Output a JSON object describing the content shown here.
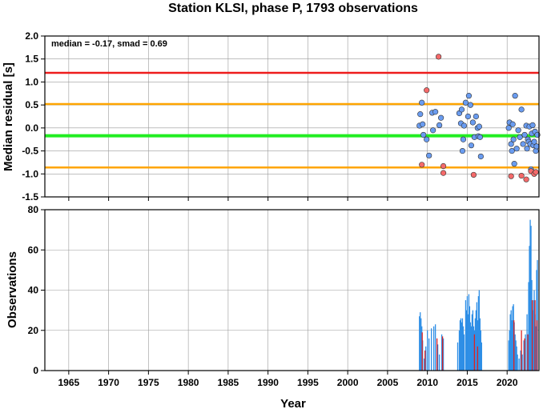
{
  "title": "Station KLSI, phase P, 1793 observations",
  "colors": {
    "red_line": "#ee1c1c",
    "orange_line": "#ffa500",
    "green_line": "#22ee22",
    "blue_point": "#6a9cf0",
    "red_point": "#f46a6a",
    "blue_bar": "#2f8fe6",
    "red_bar": "#dd2222",
    "grid": "#9a9a9a"
  },
  "chart_data": [
    {
      "type": "scatter",
      "ylabel": "Median residual [s]",
      "xlim": [
        1962,
        2024
      ],
      "ylim": [
        -1.5,
        2.0
      ],
      "xticks": [
        1965,
        1970,
        1975,
        1980,
        1985,
        1990,
        1995,
        2000,
        2005,
        2010,
        2015,
        2020
      ],
      "yticks": [
        -1.5,
        -1.0,
        -0.5,
        0.0,
        0.5,
        1.0,
        1.5,
        2.0
      ],
      "ytick_labels": [
        "-1.5",
        "-1.0",
        "-0.5",
        "0.0",
        "0.5",
        "1.0",
        "1.5",
        "2.0"
      ],
      "grid": true,
      "annotation": "median = -0.17, smad = 0.69",
      "hlines": [
        {
          "y": 1.2,
          "color": "red"
        },
        {
          "y": 0.52,
          "color": "orange"
        },
        {
          "y": -0.17,
          "color": "green"
        },
        {
          "y": -0.86,
          "color": "orange"
        }
      ],
      "series": [
        {
          "color": "blue",
          "points": [
            [
              2009.0,
              0.05
            ],
            [
              2009.1,
              0.3
            ],
            [
              2009.3,
              0.55
            ],
            [
              2009.4,
              0.08
            ],
            [
              2009.5,
              -0.15
            ],
            [
              2009.9,
              -0.25
            ],
            [
              2010.2,
              -0.6
            ],
            [
              2010.6,
              0.33
            ],
            [
              2010.7,
              -0.05
            ],
            [
              2011.0,
              0.35
            ],
            [
              2011.5,
              0.06
            ],
            [
              2011.7,
              0.22
            ],
            [
              2014.0,
              0.32
            ],
            [
              2014.2,
              0.1
            ],
            [
              2014.3,
              0.4
            ],
            [
              2014.5,
              -0.25
            ],
            [
              2014.6,
              0.05
            ],
            [
              2014.8,
              0.55
            ],
            [
              2014.4,
              -0.5
            ],
            [
              2015.1,
              0.25
            ],
            [
              2015.2,
              0.7
            ],
            [
              2015.4,
              0.5
            ],
            [
              2015.5,
              -0.38
            ],
            [
              2015.7,
              0.12
            ],
            [
              2015.9,
              -0.2
            ],
            [
              2016.1,
              0.25
            ],
            [
              2016.3,
              0.0
            ],
            [
              2016.4,
              -0.18
            ],
            [
              2016.6,
              -0.2
            ],
            [
              2016.7,
              -0.62
            ],
            [
              2016.5,
              0.03
            ],
            [
              2020.2,
              0.0
            ],
            [
              2020.3,
              0.12
            ],
            [
              2020.5,
              -0.35
            ],
            [
              2020.6,
              -0.5
            ],
            [
              2020.7,
              0.08
            ],
            [
              2020.8,
              -0.25
            ],
            [
              2020.9,
              -0.78
            ],
            [
              2021.0,
              0.7
            ],
            [
              2021.2,
              -0.45
            ],
            [
              2021.4,
              -0.05
            ],
            [
              2021.6,
              -0.2
            ],
            [
              2021.8,
              0.4
            ],
            [
              2022.0,
              -0.35
            ],
            [
              2022.2,
              -0.15
            ],
            [
              2022.4,
              0.05
            ],
            [
              2022.5,
              -0.45
            ],
            [
              2022.6,
              -0.25
            ],
            [
              2022.7,
              -0.3
            ],
            [
              2022.8,
              0.03
            ],
            [
              2022.9,
              -0.35
            ],
            [
              2023.0,
              -0.9
            ],
            [
              2023.1,
              -0.12
            ],
            [
              2023.2,
              0.06
            ],
            [
              2023.3,
              -0.38
            ],
            [
              2023.4,
              -0.3
            ],
            [
              2023.5,
              -0.08
            ],
            [
              2023.6,
              -0.5
            ],
            [
              2023.7,
              -0.4
            ],
            [
              2023.8,
              -0.15
            ]
          ]
        },
        {
          "color": "red",
          "points": [
            [
              2009.3,
              -0.8
            ],
            [
              2009.9,
              0.82
            ],
            [
              2011.4,
              1.55
            ],
            [
              2012.0,
              -0.83
            ],
            [
              2012.0,
              -0.98
            ],
            [
              2015.8,
              -1.02
            ],
            [
              2020.5,
              -1.05
            ],
            [
              2021.8,
              -1.04
            ],
            [
              2022.4,
              -1.12
            ],
            [
              2023.0,
              -0.94
            ],
            [
              2023.4,
              -1.0
            ],
            [
              2023.6,
              -0.96
            ]
          ]
        }
      ]
    },
    {
      "type": "bar",
      "xlabel": "Year",
      "ylabel": "Observations",
      "xlim": [
        1962,
        2024
      ],
      "ylim": [
        0,
        80
      ],
      "xticks": [
        1965,
        1970,
        1975,
        1980,
        1985,
        1990,
        1995,
        2000,
        2005,
        2010,
        2015,
        2020
      ],
      "yticks": [
        0,
        20,
        40,
        60,
        80
      ],
      "grid": true,
      "series": [
        {
          "color": "blue",
          "bars": [
            [
              2009.0,
              27
            ],
            [
              2009.1,
              29
            ],
            [
              2009.2,
              26
            ],
            [
              2009.3,
              22
            ],
            [
              2009.4,
              15
            ],
            [
              2009.6,
              6
            ],
            [
              2009.8,
              12
            ],
            [
              2010.0,
              20
            ],
            [
              2010.2,
              16
            ],
            [
              2010.5,
              21
            ],
            [
              2010.8,
              22
            ],
            [
              2011.0,
              23
            ],
            [
              2011.3,
              13
            ],
            [
              2011.5,
              8
            ],
            [
              2011.8,
              18
            ],
            [
              2012.0,
              16
            ],
            [
              2013.8,
              14
            ],
            [
              2014.0,
              20
            ],
            [
              2014.1,
              25
            ],
            [
              2014.2,
              26
            ],
            [
              2014.3,
              24
            ],
            [
              2014.4,
              26
            ],
            [
              2014.5,
              22
            ],
            [
              2014.6,
              18
            ],
            [
              2014.8,
              35
            ],
            [
              2014.9,
              30
            ],
            [
              2015.0,
              37
            ],
            [
              2015.1,
              28
            ],
            [
              2015.2,
              38
            ],
            [
              2015.3,
              32
            ],
            [
              2015.4,
              24
            ],
            [
              2015.5,
              22
            ],
            [
              2015.6,
              28
            ],
            [
              2015.7,
              30
            ],
            [
              2015.8,
              22
            ],
            [
              2015.9,
              20
            ],
            [
              2016.0,
              26
            ],
            [
              2016.1,
              30
            ],
            [
              2016.2,
              34
            ],
            [
              2016.3,
              25
            ],
            [
              2016.4,
              37
            ],
            [
              2016.5,
              40
            ],
            [
              2016.6,
              26
            ],
            [
              2016.7,
              20
            ],
            [
              2016.8,
              14
            ],
            [
              2020.2,
              15
            ],
            [
              2020.3,
              20
            ],
            [
              2020.4,
              28
            ],
            [
              2020.5,
              30
            ],
            [
              2020.6,
              25
            ],
            [
              2020.7,
              32
            ],
            [
              2020.8,
              33
            ],
            [
              2020.9,
              24
            ],
            [
              2021.0,
              18
            ],
            [
              2021.1,
              15
            ],
            [
              2021.2,
              12
            ],
            [
              2021.3,
              8
            ],
            [
              2021.5,
              6
            ],
            [
              2021.7,
              10
            ],
            [
              2021.9,
              8
            ],
            [
              2022.1,
              15
            ],
            [
              2022.3,
              18
            ],
            [
              2022.5,
              28
            ],
            [
              2022.7,
              44
            ],
            [
              2022.8,
              62
            ],
            [
              2022.9,
              75
            ],
            [
              2023.0,
              72
            ],
            [
              2023.1,
              45
            ],
            [
              2023.2,
              30
            ],
            [
              2023.3,
              35
            ],
            [
              2023.4,
              40
            ],
            [
              2023.5,
              28
            ],
            [
              2023.6,
              22
            ],
            [
              2023.7,
              50
            ],
            [
              2023.8,
              55
            ]
          ]
        },
        {
          "color": "red",
          "bars": [
            [
              2009.35,
              19
            ],
            [
              2009.7,
              10
            ],
            [
              2011.2,
              16
            ],
            [
              2011.9,
              17
            ],
            [
              2015.9,
              18
            ],
            [
              2016.3,
              12
            ],
            [
              2020.85,
              25
            ],
            [
              2021.8,
              20
            ],
            [
              2022.2,
              16
            ],
            [
              2022.6,
              18
            ],
            [
              2023.15,
              35
            ],
            [
              2023.5,
              35
            ],
            [
              2023.75,
              25
            ]
          ]
        }
      ]
    }
  ]
}
